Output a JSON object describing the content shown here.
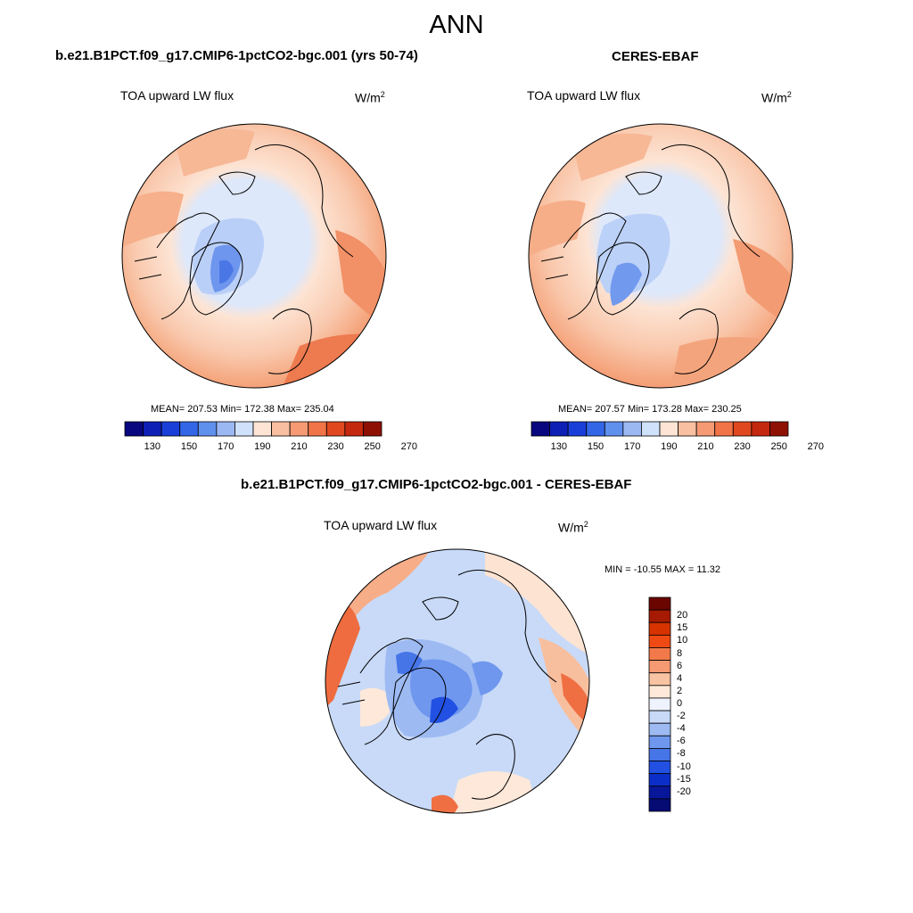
{
  "figure": {
    "title": "ANN",
    "panels": [
      {
        "id": "model",
        "title": "b.e21.B1PCT.f09_g17.CMIP6-1pctCO2-bgc.001 (yrs 50-74)",
        "variable_label": "TOA upward LW flux",
        "units_base": "W/m",
        "units_exp": "2",
        "stats_text": "MEAN= 207.53  Min= 172.38  Max= 235.04"
      },
      {
        "id": "obs",
        "title": "CERES-EBAF",
        "variable_label": "TOA upward LW flux",
        "units_base": "W/m",
        "units_exp": "2",
        "stats_text": "MEAN= 207.57  Min= 173.28  Max= 230.25"
      },
      {
        "id": "diff",
        "title": "b.e21.B1PCT.f09_g17.CMIP6-1pctCO2-bgc.001 - CERES-EBAF",
        "variable_label": "TOA upward LW flux",
        "units_base": "W/m",
        "units_exp": "2",
        "stats_text": "MIN = -10.55 MAX =  11.32"
      }
    ]
  },
  "colorbars": {
    "absolute": {
      "colors": [
        "#08077f",
        "#0e1fb5",
        "#1a3fd9",
        "#3366e6",
        "#6090ee",
        "#9cb8f3",
        "#d0e1fb",
        "#fde4d4",
        "#f8bfa0",
        "#f59a73",
        "#f07448",
        "#e0481f",
        "#c4280e",
        "#8e1005"
      ],
      "tick_labels": [
        "130",
        "150",
        "170",
        "190",
        "210",
        "230",
        "250",
        "270"
      ]
    },
    "difference": {
      "colors": [
        "#6b0500",
        "#a51a00",
        "#d63300",
        "#ef4a14",
        "#f27a4a",
        "#f59a73",
        "#f8c3a3",
        "#fde8d9",
        "#eef3fd",
        "#c8daf8",
        "#9dbaf3",
        "#6f97ee",
        "#4675e8",
        "#2150e2",
        "#0c2ec8",
        "#08179a",
        "#050b72"
      ],
      "labels": [
        "20",
        "15",
        "10",
        "8",
        "6",
        "4",
        "2",
        "0",
        "-2",
        "-4",
        "-6",
        "-8",
        "-10",
        "-15",
        "-20"
      ]
    }
  }
}
